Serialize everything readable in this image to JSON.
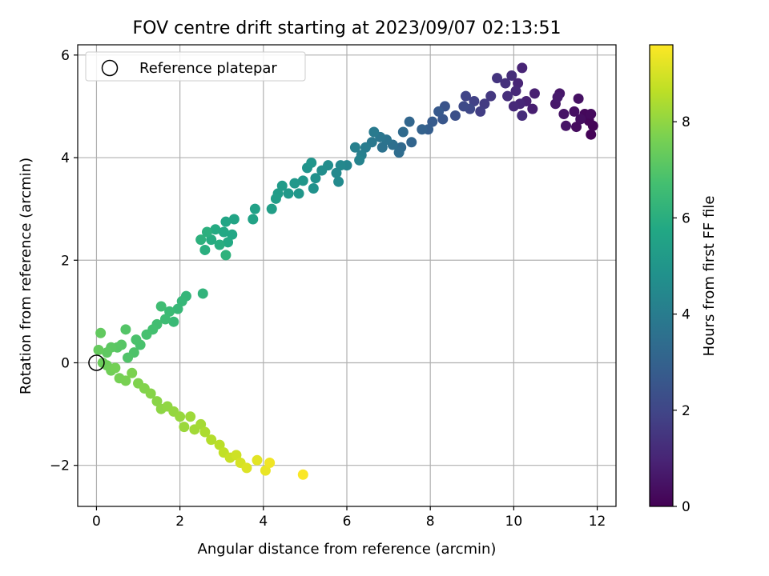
{
  "chart_data": {
    "type": "scatter",
    "title": "FOV centre drift starting at 2023/09/07 02:13:51",
    "xlabel": "Angular distance from reference (arcmin)",
    "ylabel": "Rotation from reference (arcmin)",
    "xlim": [
      -0.45,
      12.45
    ],
    "ylim": [
      -2.8,
      6.2
    ],
    "xticks": [
      0,
      2,
      4,
      6,
      8,
      10,
      12
    ],
    "yticks": [
      -2,
      0,
      2,
      4,
      6
    ],
    "xtick_labels": [
      "0",
      "2",
      "4",
      "6",
      "8",
      "10",
      "12"
    ],
    "ytick_labels": [
      "−2",
      "0",
      "2",
      "4",
      "6"
    ],
    "grid": true,
    "legend": {
      "placement": "top-left",
      "entries": [
        {
          "label": "Reference platepar",
          "marker": "open-circle",
          "x": 0,
          "y": 0
        }
      ]
    },
    "colorbar": {
      "label": "Hours from first FF file",
      "colormap": "viridis",
      "range": [
        0,
        9.6
      ],
      "ticks": [
        0,
        2,
        4,
        6,
        8
      ],
      "tick_labels": [
        "0",
        "2",
        "4",
        "6",
        "8"
      ]
    },
    "series": [
      {
        "color_by": "hours",
        "points": [
          [
            11.85,
            4.45,
            0.05
          ],
          [
            11.9,
            4.62,
            0.1
          ],
          [
            11.8,
            4.72,
            0.15
          ],
          [
            11.7,
            4.85,
            0.2
          ],
          [
            11.85,
            4.85,
            0.25
          ],
          [
            11.5,
            4.6,
            0.3
          ],
          [
            11.6,
            4.75,
            0.35
          ],
          [
            11.45,
            4.9,
            0.4
          ],
          [
            11.55,
            5.15,
            0.45
          ],
          [
            11.2,
            4.85,
            0.5
          ],
          [
            11.25,
            4.62,
            0.55
          ],
          [
            11.1,
            5.25,
            0.6
          ],
          [
            11.0,
            5.05,
            0.65
          ],
          [
            11.05,
            5.18,
            0.7
          ],
          [
            10.45,
            4.95,
            0.8
          ],
          [
            10.5,
            5.25,
            0.85
          ],
          [
            10.3,
            5.1,
            0.9
          ],
          [
            10.2,
            5.75,
            0.95
          ],
          [
            10.1,
            5.45,
            1.0
          ],
          [
            10.15,
            5.05,
            1.05
          ],
          [
            10.05,
            5.3,
            1.1
          ],
          [
            10.0,
            5.0,
            1.15
          ],
          [
            10.2,
            4.82,
            1.2
          ],
          [
            9.95,
            5.6,
            1.25
          ],
          [
            9.85,
            5.2,
            1.3
          ],
          [
            9.8,
            5.45,
            1.35
          ],
          [
            9.6,
            5.55,
            1.45
          ],
          [
            9.45,
            5.2,
            1.55
          ],
          [
            9.3,
            5.05,
            1.65
          ],
          [
            9.2,
            4.9,
            1.75
          ],
          [
            9.05,
            5.1,
            1.85
          ],
          [
            8.85,
            5.2,
            1.95
          ],
          [
            8.95,
            4.95,
            2.05
          ],
          [
            8.8,
            5.0,
            2.15
          ],
          [
            8.6,
            4.82,
            2.3
          ],
          [
            8.35,
            5.0,
            2.45
          ],
          [
            8.3,
            4.75,
            2.55
          ],
          [
            8.2,
            4.9,
            2.65
          ],
          [
            8.05,
            4.7,
            2.75
          ],
          [
            7.95,
            4.55,
            2.85
          ],
          [
            7.8,
            4.55,
            3.0
          ],
          [
            7.55,
            4.3,
            3.1
          ],
          [
            7.5,
            4.7,
            3.15
          ],
          [
            7.3,
            4.2,
            3.25
          ],
          [
            7.35,
            4.5,
            3.3
          ],
          [
            7.25,
            4.1,
            3.4
          ],
          [
            7.1,
            4.25,
            3.5
          ],
          [
            6.85,
            4.2,
            3.6
          ],
          [
            6.95,
            4.35,
            3.65
          ],
          [
            6.8,
            4.4,
            3.75
          ],
          [
            6.6,
            4.3,
            3.85
          ],
          [
            6.65,
            4.5,
            3.9
          ],
          [
            6.45,
            4.2,
            4.0
          ],
          [
            6.35,
            4.05,
            4.1
          ],
          [
            6.2,
            4.2,
            4.15
          ],
          [
            6.3,
            3.95,
            4.25
          ],
          [
            6.0,
            3.85,
            4.35
          ],
          [
            5.85,
            3.85,
            4.45
          ],
          [
            5.75,
            3.7,
            4.5
          ],
          [
            5.8,
            3.53,
            4.55
          ],
          [
            5.55,
            3.85,
            4.65
          ],
          [
            5.4,
            3.75,
            4.7
          ],
          [
            5.25,
            3.6,
            4.8
          ],
          [
            5.2,
            3.4,
            4.85
          ],
          [
            5.05,
            3.8,
            4.9
          ],
          [
            5.15,
            3.9,
            4.95
          ],
          [
            4.95,
            3.55,
            5.0
          ],
          [
            4.85,
            3.3,
            5.05
          ],
          [
            4.75,
            3.5,
            5.1
          ],
          [
            4.6,
            3.3,
            5.15
          ],
          [
            4.45,
            3.45,
            5.2
          ],
          [
            4.35,
            3.3,
            5.25
          ],
          [
            4.3,
            3.2,
            5.3
          ],
          [
            4.2,
            3.0,
            5.35
          ],
          [
            3.8,
            3.0,
            5.45
          ],
          [
            3.75,
            2.8,
            5.5
          ],
          [
            3.3,
            2.8,
            5.6
          ],
          [
            3.1,
            2.75,
            5.65
          ],
          [
            3.25,
            2.5,
            5.7
          ],
          [
            3.05,
            2.55,
            5.75
          ],
          [
            3.15,
            2.35,
            5.8
          ],
          [
            2.85,
            2.6,
            5.85
          ],
          [
            2.75,
            2.4,
            5.9
          ],
          [
            2.95,
            2.3,
            5.95
          ],
          [
            2.6,
            2.2,
            6.0
          ],
          [
            2.65,
            2.55,
            6.05
          ],
          [
            2.5,
            2.4,
            6.1
          ],
          [
            3.1,
            2.1,
            6.15
          ],
          [
            2.55,
            1.35,
            6.2
          ],
          [
            2.15,
            1.3,
            6.3
          ],
          [
            2.05,
            1.2,
            6.35
          ],
          [
            1.95,
            1.05,
            6.4
          ],
          [
            1.85,
            0.8,
            6.45
          ],
          [
            1.75,
            1.0,
            6.5
          ],
          [
            1.65,
            0.85,
            6.55
          ],
          [
            1.55,
            1.1,
            6.6
          ],
          [
            1.45,
            0.75,
            6.65
          ],
          [
            1.35,
            0.65,
            6.7
          ],
          [
            1.2,
            0.55,
            6.75
          ],
          [
            1.05,
            0.35,
            6.8
          ],
          [
            0.95,
            0.45,
            6.85
          ],
          [
            0.9,
            0.2,
            6.9
          ],
          [
            0.75,
            0.1,
            6.95
          ],
          [
            0.7,
            0.65,
            7.0
          ],
          [
            0.6,
            0.35,
            7.05
          ],
          [
            0.5,
            0.3,
            7.1
          ],
          [
            0.35,
            0.3,
            7.15
          ],
          [
            0.25,
            0.2,
            7.2
          ],
          [
            0.1,
            0.58,
            7.25
          ],
          [
            0.05,
            0.25,
            7.3
          ],
          [
            0.15,
            0.0,
            7.4
          ],
          [
            0.25,
            -0.05,
            7.45
          ],
          [
            0.35,
            -0.15,
            7.5
          ],
          [
            0.45,
            -0.1,
            7.55
          ],
          [
            0.55,
            -0.3,
            7.6
          ],
          [
            0.7,
            -0.35,
            7.65
          ],
          [
            0.85,
            -0.2,
            7.7
          ],
          [
            1.0,
            -0.4,
            7.75
          ],
          [
            1.15,
            -0.5,
            7.8
          ],
          [
            1.3,
            -0.6,
            7.85
          ],
          [
            1.45,
            -0.75,
            7.9
          ],
          [
            1.55,
            -0.9,
            7.95
          ],
          [
            1.7,
            -0.85,
            8.0
          ],
          [
            1.85,
            -0.95,
            8.05
          ],
          [
            2.0,
            -1.05,
            8.1
          ],
          [
            2.1,
            -1.25,
            8.15
          ],
          [
            2.25,
            -1.05,
            8.2
          ],
          [
            2.35,
            -1.3,
            8.25
          ],
          [
            2.5,
            -1.2,
            8.3
          ],
          [
            2.6,
            -1.35,
            8.4
          ],
          [
            2.75,
            -1.5,
            8.5
          ],
          [
            2.95,
            -1.6,
            8.6
          ],
          [
            3.05,
            -1.75,
            8.7
          ],
          [
            3.2,
            -1.85,
            8.8
          ],
          [
            3.35,
            -1.8,
            8.9
          ],
          [
            3.45,
            -1.95,
            9.0
          ],
          [
            3.6,
            -2.05,
            9.1
          ],
          [
            3.85,
            -1.9,
            9.2
          ],
          [
            4.05,
            -2.1,
            9.3
          ],
          [
            4.15,
            -1.95,
            9.4
          ],
          [
            4.95,
            -2.18,
            9.55
          ]
        ]
      }
    ]
  }
}
